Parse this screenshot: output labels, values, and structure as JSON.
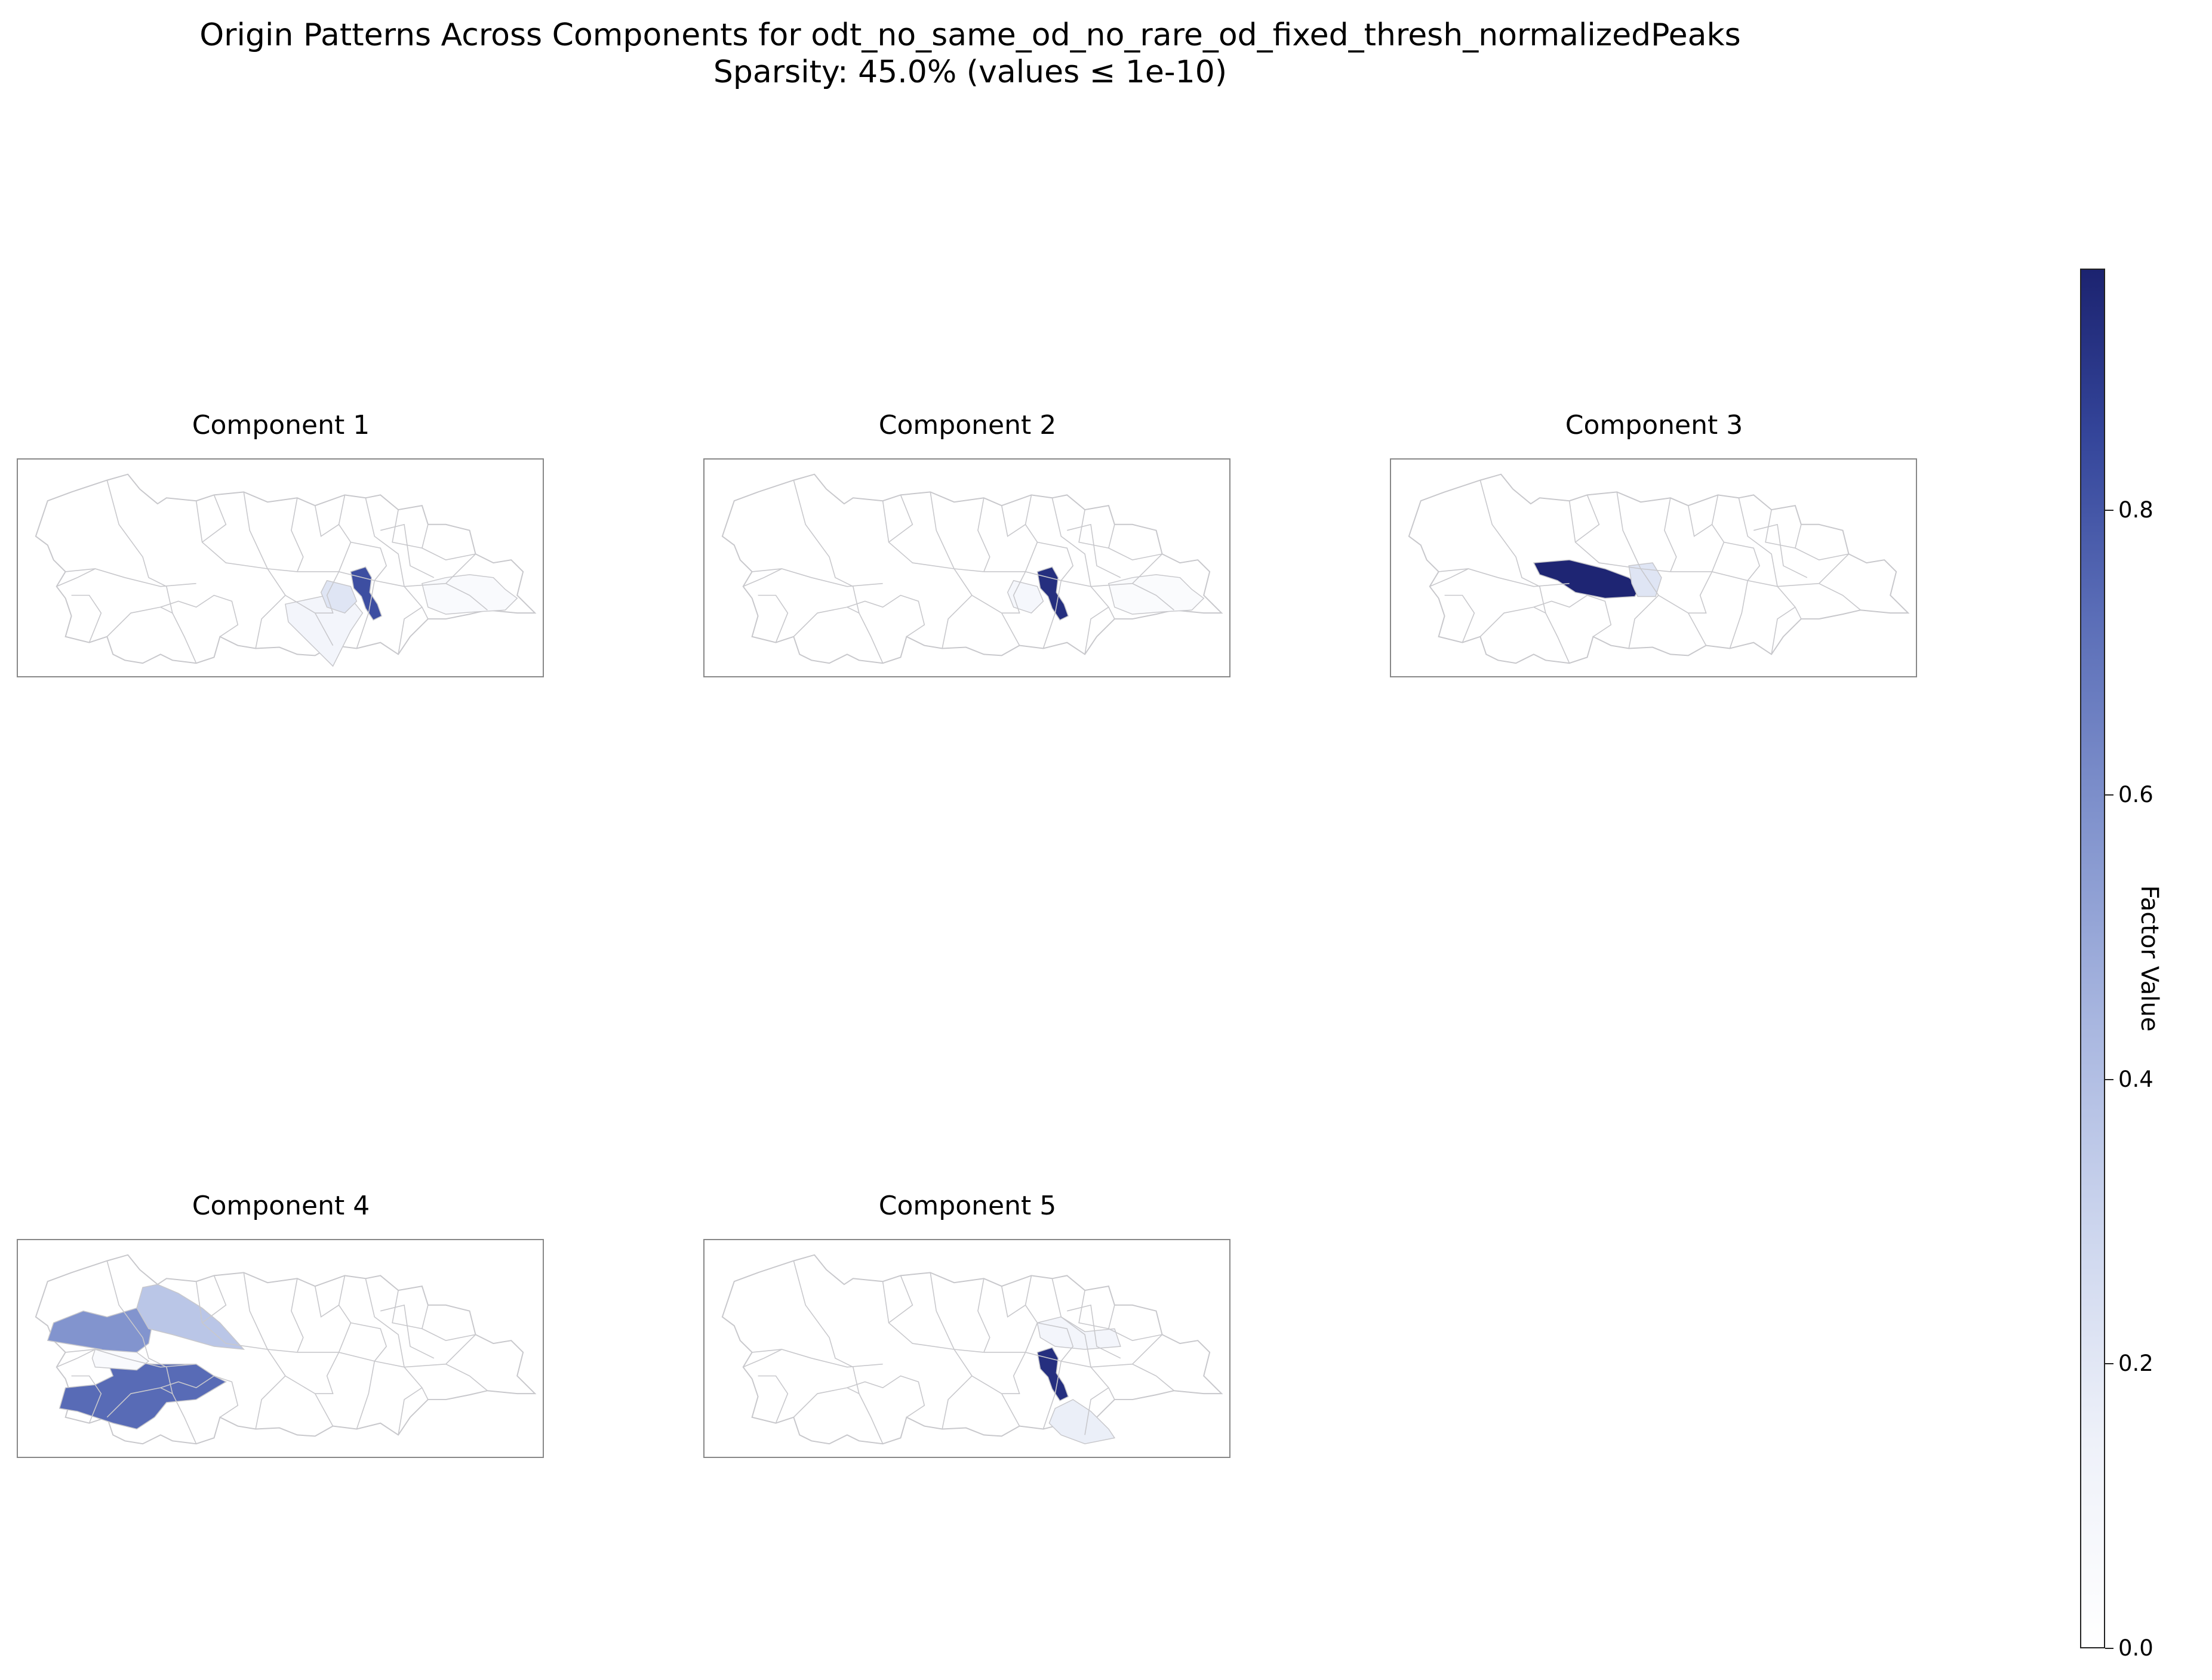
{
  "title": "Origin Patterns Across Components for odt_no_same_od_no_rare_od_fixed_thresh_normalizedPeaks",
  "subtitle": "Sparsity: 45.0% (values ≤ 1e-10)",
  "colors": {
    "border": "#c8c8cc",
    "empty": "#ffffff",
    "cmap": [
      "#ffffff",
      "#eef1f9",
      "#cdd6ee",
      "#a9b7e0",
      "#8193cd",
      "#5a6db7",
      "#34459a",
      "#1c2370"
    ]
  },
  "panels": [
    {
      "title": "Component 1",
      "highlights": [
        {
          "region": "center",
          "value": 0.8
        },
        {
          "region": "south-wedge",
          "value": 0.1
        },
        {
          "region": "center-south",
          "value": 0.2
        },
        {
          "region": "east-lobe",
          "value": 0.05
        }
      ]
    },
    {
      "title": "Component 2",
      "highlights": [
        {
          "region": "center",
          "value": 0.92
        },
        {
          "region": "center-south",
          "value": 0.08
        },
        {
          "region": "east-lobe",
          "value": 0.04
        }
      ]
    },
    {
      "title": "Component 3",
      "highlights": [
        {
          "region": "west-center",
          "value": 0.96
        },
        {
          "region": "center-north",
          "value": 0.2
        }
      ]
    },
    {
      "title": "Component 4",
      "highlights": [
        {
          "region": "west-north",
          "value": 0.55
        },
        {
          "region": "north-band",
          "value": 0.35
        },
        {
          "region": "southwest",
          "value": 0.7
        },
        {
          "region": "west-pocket",
          "value": 0.05
        }
      ]
    },
    {
      "title": "Component 5",
      "highlights": [
        {
          "region": "center",
          "value": 0.92
        },
        {
          "region": "southeast",
          "value": 0.15
        },
        {
          "region": "north-east",
          "value": 0.1
        }
      ]
    }
  ],
  "colorbar": {
    "label": "Factor Value",
    "min": 0,
    "max": 0.97,
    "ticks": [
      {
        "value": 0.0,
        "label": "0.0"
      },
      {
        "value": 0.2,
        "label": "0.2"
      },
      {
        "value": 0.4,
        "label": "0.4"
      },
      {
        "value": 0.6,
        "label": "0.6"
      },
      {
        "value": 0.8,
        "label": "0.8"
      }
    ]
  }
}
